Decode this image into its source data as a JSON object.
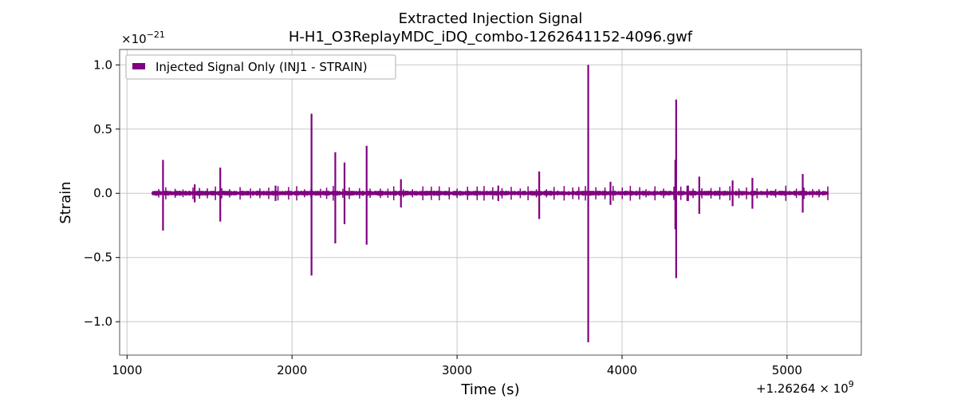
{
  "chart_data": {
    "type": "line",
    "title": "Extracted Injection Signal",
    "subtitle": "H-H1_O3ReplayMDC_iDQ_combo-1262641152-4096.gwf",
    "xlabel": "Time (s)",
    "ylabel": "Strain",
    "x_offset_label": "+1.26264 × 10",
    "x_offset_exponent": "9",
    "y_scale_label": "×10",
    "y_scale_exponent": "−21",
    "xlim": [
      955,
      5450
    ],
    "ylim": [
      -1.26,
      1.12
    ],
    "x_ticks": [
      1000,
      2000,
      3000,
      4000,
      5000
    ],
    "x_tick_labels": [
      "1000",
      "2000",
      "3000",
      "4000",
      "5000"
    ],
    "y_ticks": [
      -1.0,
      -0.5,
      0.0,
      0.5,
      1.0
    ],
    "y_tick_labels": [
      "−1.0",
      "−0.5",
      "0.0",
      "0.5",
      "1.0"
    ],
    "grid": true,
    "legend_position": "top-left",
    "series": [
      {
        "name": "Injected Signal Only (INJ1 - STRAIN)",
        "color": "#800080",
        "x_start": 1152,
        "x_end": 5248,
        "baseline_amplitude": 0.02,
        "spikes": [
          {
            "x": 1218,
            "y_max": 0.26,
            "y_min": -0.29
          },
          {
            "x": 1565,
            "y_max": 0.2,
            "y_min": -0.22
          },
          {
            "x": 2118,
            "y_max": 0.62,
            "y_min": -0.64
          },
          {
            "x": 2262,
            "y_max": 0.32,
            "y_min": -0.39
          },
          {
            "x": 2318,
            "y_max": 0.24,
            "y_min": -0.24
          },
          {
            "x": 2452,
            "y_max": 0.37,
            "y_min": -0.4
          },
          {
            "x": 3498,
            "y_max": 0.17,
            "y_min": -0.2
          },
          {
            "x": 3795,
            "y_max": 1.0,
            "y_min": -1.16
          },
          {
            "x": 4328,
            "y_max": 0.73,
            "y_min": -0.66
          },
          {
            "x": 4323,
            "y_max": 0.26,
            "y_min": -0.28
          },
          {
            "x": 4468,
            "y_max": 0.13,
            "y_min": -0.16
          },
          {
            "x": 4670,
            "y_max": 0.1,
            "y_min": -0.1
          },
          {
            "x": 5095,
            "y_max": 0.15,
            "y_min": -0.15
          },
          {
            "x": 2660,
            "y_max": 0.11,
            "y_min": -0.11
          },
          {
            "x": 1410,
            "y_max": 0.07,
            "y_min": -0.07
          },
          {
            "x": 1900,
            "y_max": 0.06,
            "y_min": -0.06
          },
          {
            "x": 3250,
            "y_max": 0.06,
            "y_min": -0.06
          },
          {
            "x": 3930,
            "y_max": 0.09,
            "y_min": -0.09
          },
          {
            "x": 4790,
            "y_max": 0.12,
            "y_min": -0.12
          },
          {
            "x": 4400,
            "y_max": 0.06,
            "y_min": -0.06
          }
        ]
      }
    ]
  }
}
